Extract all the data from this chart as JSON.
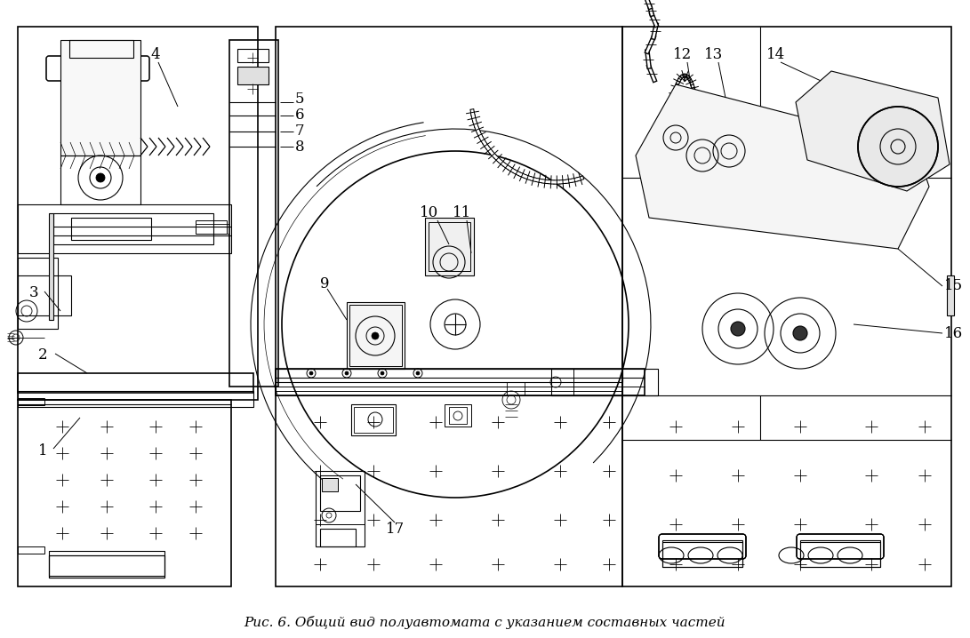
{
  "caption": "Рис. 6. Общий вид полуавтомата с указанием составных частей",
  "bg_color": "#ffffff",
  "fig_width": 10.91,
  "fig_height": 7.18,
  "dpi": 100,
  "caption_fontsize": 11.0,
  "label_fontsize": 12
}
